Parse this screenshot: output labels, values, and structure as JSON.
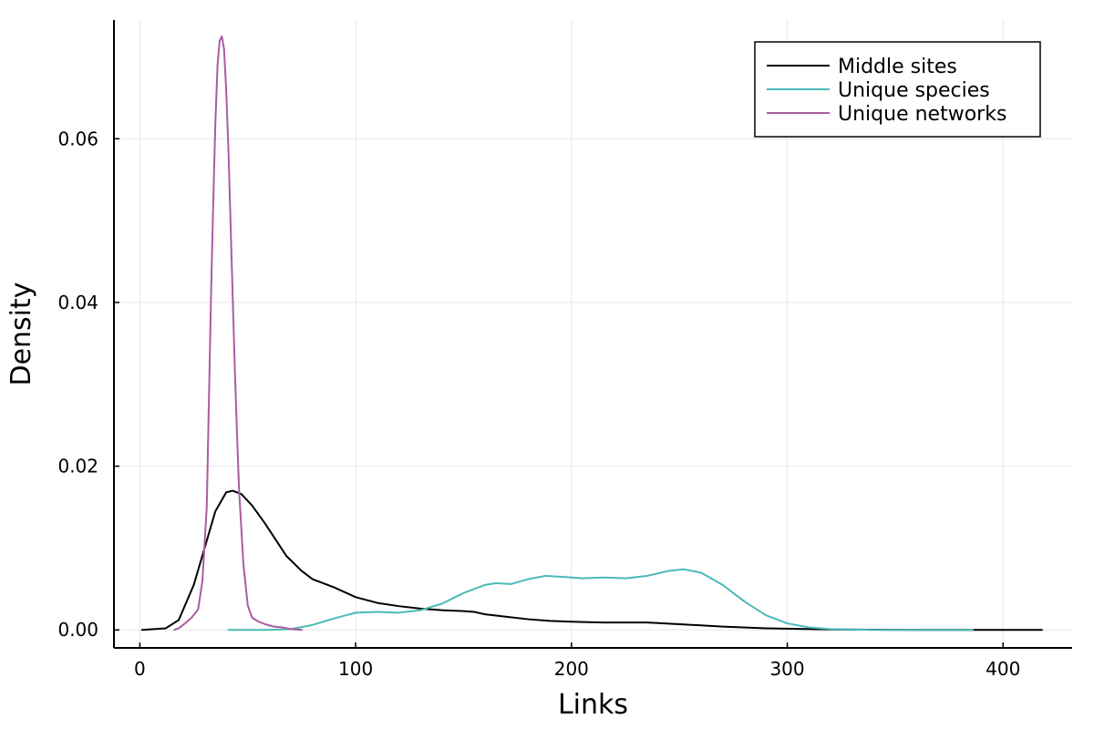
{
  "chart_data": {
    "type": "line",
    "title": "",
    "xlabel": "Links",
    "ylabel": "Density",
    "xlim": [
      -12,
      432
    ],
    "ylim": [
      -0.0022,
      0.0745
    ],
    "x_ticks": [
      0,
      100,
      200,
      300,
      400
    ],
    "x_tick_labels": [
      "0",
      "100",
      "200",
      "300",
      "400"
    ],
    "y_ticks": [
      0.0,
      0.02,
      0.04,
      0.06
    ],
    "y_tick_labels": [
      "0.00",
      "0.02",
      "0.04",
      "0.06"
    ],
    "grid": true,
    "legend_position": "top-right",
    "series": [
      {
        "name": "Middle sites",
        "color": "#000000",
        "points": [
          [
            1,
            0.0
          ],
          [
            12,
            0.0002
          ],
          [
            18,
            0.0012
          ],
          [
            25,
            0.0055
          ],
          [
            30,
            0.01
          ],
          [
            35,
            0.0145
          ],
          [
            40,
            0.0168
          ],
          [
            43,
            0.017
          ],
          [
            47,
            0.0166
          ],
          [
            52,
            0.0152
          ],
          [
            58,
            0.013
          ],
          [
            63,
            0.011
          ],
          [
            68,
            0.009
          ],
          [
            75,
            0.0072
          ],
          [
            80,
            0.0062
          ],
          [
            90,
            0.0052
          ],
          [
            100,
            0.004
          ],
          [
            110,
            0.0033
          ],
          [
            120,
            0.0029
          ],
          [
            130,
            0.0026
          ],
          [
            140,
            0.0024
          ],
          [
            150,
            0.0023
          ],
          [
            155,
            0.0022
          ],
          [
            160,
            0.0019
          ],
          [
            170,
            0.0016
          ],
          [
            180,
            0.0013
          ],
          [
            190,
            0.0011
          ],
          [
            200,
            0.001
          ],
          [
            215,
            0.0009
          ],
          [
            235,
            0.0009
          ],
          [
            250,
            0.0007
          ],
          [
            270,
            0.0004
          ],
          [
            290,
            0.0002
          ],
          [
            320,
            5e-05
          ],
          [
            360,
            0.0
          ],
          [
            418,
            0.0
          ]
        ]
      },
      {
        "name": "Unique species",
        "color": "#4bb9b9",
        "points": [
          [
            41,
            0.0
          ],
          [
            60,
            0.0
          ],
          [
            70,
            0.0001
          ],
          [
            80,
            0.0006
          ],
          [
            90,
            0.0014
          ],
          [
            100,
            0.0021
          ],
          [
            110,
            0.0022
          ],
          [
            120,
            0.0021
          ],
          [
            130,
            0.0024
          ],
          [
            140,
            0.0032
          ],
          [
            150,
            0.0045
          ],
          [
            160,
            0.0055
          ],
          [
            165,
            0.0057
          ],
          [
            172,
            0.0056
          ],
          [
            180,
            0.0062
          ],
          [
            188,
            0.0066
          ],
          [
            195,
            0.0065
          ],
          [
            205,
            0.0063
          ],
          [
            215,
            0.0064
          ],
          [
            225,
            0.0063
          ],
          [
            235,
            0.0066
          ],
          [
            245,
            0.0072
          ],
          [
            252,
            0.0074
          ],
          [
            260,
            0.007
          ],
          [
            270,
            0.0055
          ],
          [
            280,
            0.0035
          ],
          [
            290,
            0.0018
          ],
          [
            300,
            0.0008
          ],
          [
            310,
            0.0003
          ],
          [
            320,
            0.0001
          ],
          [
            340,
            0.0
          ],
          [
            386,
            0.0
          ]
        ]
      },
      {
        "name": "Unique networks",
        "color": "#aa5ca1",
        "points": [
          [
            16,
            0.0
          ],
          [
            18,
            0.0002
          ],
          [
            21,
            0.0008
          ],
          [
            24,
            0.0015
          ],
          [
            27,
            0.0025
          ],
          [
            29,
            0.006
          ],
          [
            31,
            0.015
          ],
          [
            32,
            0.028
          ],
          [
            33,
            0.041
          ],
          [
            34,
            0.052
          ],
          [
            35,
            0.062
          ],
          [
            36,
            0.069
          ],
          [
            37,
            0.072
          ],
          [
            38,
            0.0725
          ],
          [
            39,
            0.071
          ],
          [
            40,
            0.066
          ],
          [
            41,
            0.059
          ],
          [
            42,
            0.05
          ],
          [
            43,
            0.041
          ],
          [
            44,
            0.032
          ],
          [
            45,
            0.024
          ],
          [
            46,
            0.017
          ],
          [
            48,
            0.008
          ],
          [
            50,
            0.003
          ],
          [
            52,
            0.0015
          ],
          [
            55,
            0.001
          ],
          [
            58,
            0.0007
          ],
          [
            62,
            0.0004
          ],
          [
            66,
            0.0003
          ],
          [
            70,
            0.0001
          ],
          [
            75,
            0.0
          ]
        ]
      }
    ]
  }
}
